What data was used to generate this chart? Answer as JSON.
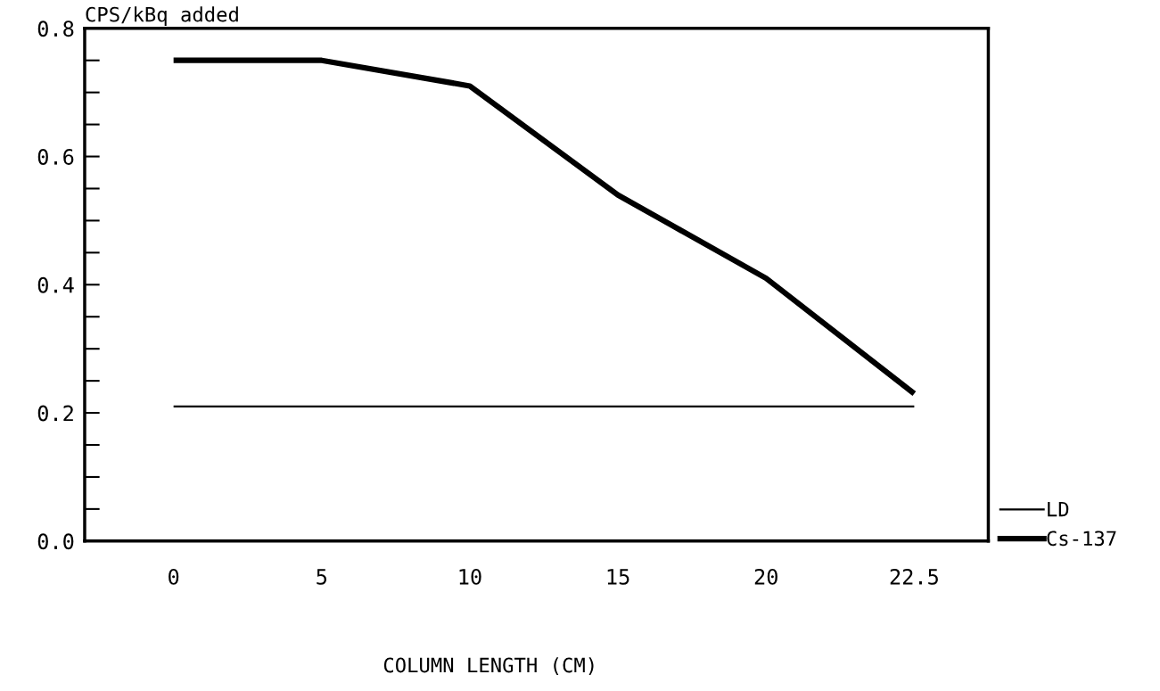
{
  "chart_data": {
    "type": "line",
    "ylabel": "CPS/kBq added",
    "xlabel": "COLUMN LENGTH (CM)",
    "categories": [
      "0",
      "5",
      "10",
      "15",
      "20",
      "22.5"
    ],
    "series": [
      {
        "name": "LD",
        "color": "#000000",
        "values": [
          0.21,
          0.21,
          0.21,
          0.21,
          0.21,
          0.21
        ]
      },
      {
        "name": "Cs-137",
        "color": "#000000",
        "values": [
          0.75,
          0.75,
          0.71,
          0.54,
          0.41,
          0.23
        ]
      }
    ],
    "ylim": [
      0,
      0.8
    ],
    "yticks": [
      {
        "value": 0,
        "label": "0.0"
      },
      {
        "value": 0.2,
        "label": "0.2"
      },
      {
        "value": 0.4,
        "label": "0.4"
      },
      {
        "value": 0.6,
        "label": "0.6"
      },
      {
        "value": 0.8,
        "label": "0.8"
      }
    ],
    "grid": false,
    "legend": "bottom right",
    "marker": "none",
    "line_style": "solid"
  }
}
